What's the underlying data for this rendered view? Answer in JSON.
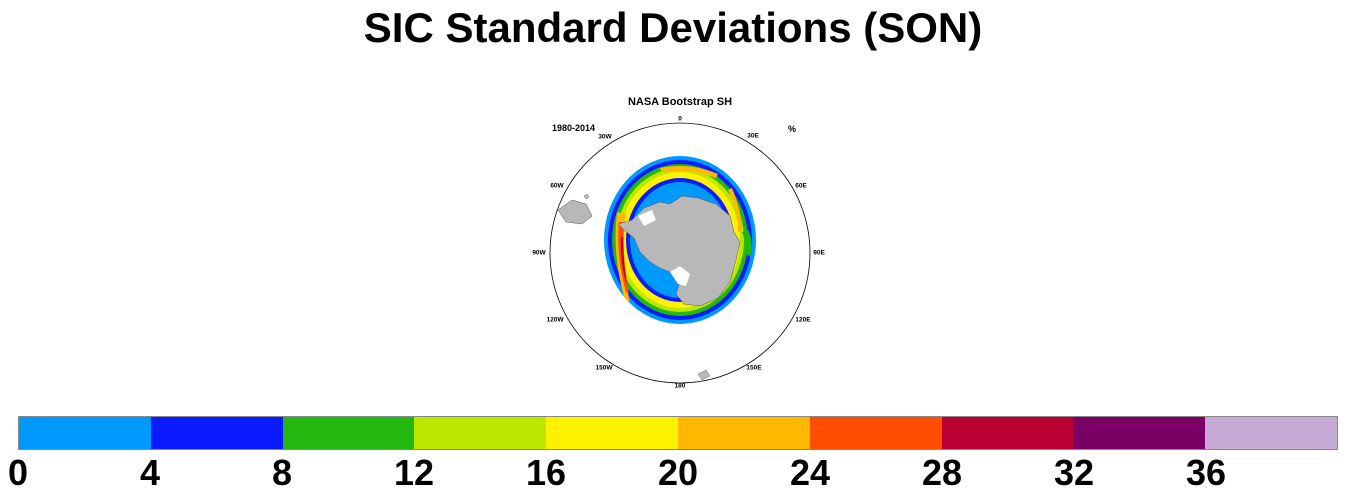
{
  "title": "SIC Standard Deviations (SON)",
  "panel": {
    "title": "NASA Bootstrap SH",
    "period": "1980-2014",
    "units": "%",
    "longitudes": [
      "0",
      "30E",
      "60E",
      "90E",
      "120E",
      "150E",
      "180",
      "150W",
      "120W",
      "90W",
      "60W",
      "30W"
    ]
  },
  "colorbar": {
    "colors": [
      "#0099ff",
      "#0a1bff",
      "#22b80f",
      "#bde600",
      "#fff200",
      "#ffb800",
      "#ff4d00",
      "#bb0033",
      "#7a0066",
      "#c6a9d4"
    ],
    "labels": [
      "0",
      "4",
      "8",
      "12",
      "16",
      "20",
      "24",
      "28",
      "32",
      "36"
    ]
  },
  "colors": {
    "land": "#b8b8b8",
    "background": "#ffffff"
  }
}
